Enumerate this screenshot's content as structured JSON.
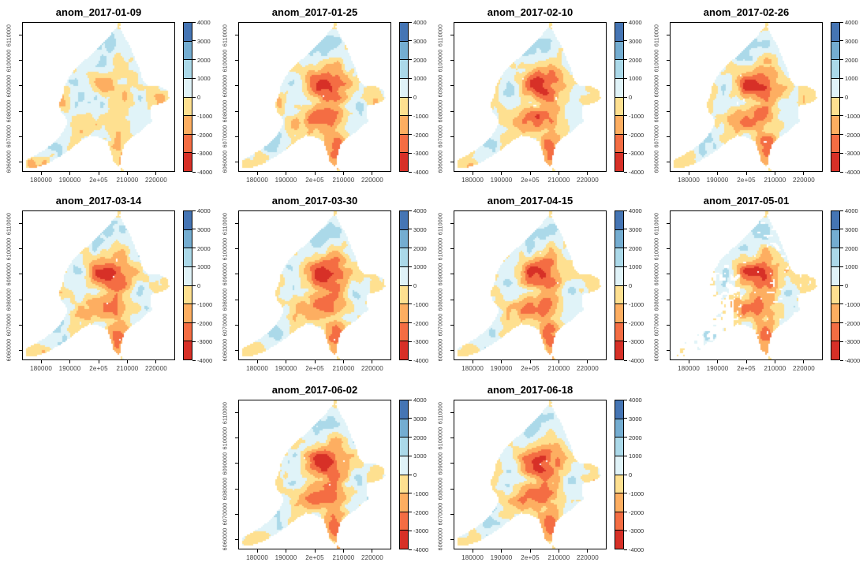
{
  "figure": {
    "background": "#ffffff",
    "axis_color": "#000000",
    "tick_label_color": "#3d3d3d",
    "title_color": "#000000",
    "x_tick_labels": [
      "180000",
      "190000",
      "2e+05",
      "210000",
      "220000"
    ],
    "y_tick_labels_top_to_bottom": [
      "6110000",
      "6100000",
      "6090000",
      "6080000",
      "6070000",
      "6060000"
    ],
    "legend_tick_labels_top_to_bottom": [
      "4000",
      "3000",
      "2000",
      "1000",
      "0",
      "-1000",
      "-2000",
      "-3000",
      "-4000"
    ],
    "palette_low_to_high": [
      "#d73027",
      "#f46d43",
      "#fdae61",
      "#fee090",
      "#e0f3f8",
      "#abd9e9",
      "#74add1",
      "#4575b4"
    ],
    "panels": [
      {
        "title": "anom_2017-01-09",
        "row": 0,
        "col": 0,
        "pattern": "mild"
      },
      {
        "title": "anom_2017-01-25",
        "row": 0,
        "col": 1,
        "pattern": "core"
      },
      {
        "title": "anom_2017-02-10",
        "row": 0,
        "col": 2,
        "pattern": "core"
      },
      {
        "title": "anom_2017-02-26",
        "row": 0,
        "col": 3,
        "pattern": "core"
      },
      {
        "title": "anom_2017-03-14",
        "row": 1,
        "col": 0,
        "pattern": "core"
      },
      {
        "title": "anom_2017-03-30",
        "row": 1,
        "col": 1,
        "pattern": "core"
      },
      {
        "title": "anom_2017-04-15",
        "row": 1,
        "col": 2,
        "pattern": "core"
      },
      {
        "title": "anom_2017-05-01",
        "row": 1,
        "col": 3,
        "pattern": "fragmented"
      },
      {
        "title": "anom_2017-06-02",
        "row": 2,
        "col": 1,
        "pattern": "core"
      },
      {
        "title": "anom_2017-06-18",
        "row": 2,
        "col": 2,
        "pattern": "core"
      }
    ]
  },
  "chart_data": {
    "type": "heatmap",
    "layout": "small multiples, 4 columns x 3 rows; last row has 2 panels in columns 2-3; each panel is a raster anomaly map with its own color-bar legend on the right",
    "panel_titles": [
      "anom_2017-01-09",
      "anom_2017-01-25",
      "anom_2017-02-10",
      "anom_2017-02-26",
      "anom_2017-03-14",
      "anom_2017-03-30",
      "anom_2017-04-15",
      "anom_2017-05-01",
      "anom_2017-06-02",
      "anom_2017-06-18"
    ],
    "x": {
      "ticks": [
        180000,
        190000,
        200000,
        210000,
        220000
      ],
      "tick_labels": [
        "180000",
        "190000",
        "2e+05",
        "210000",
        "220000"
      ],
      "range": [
        173400,
        226600
      ]
    },
    "y": {
      "ticks": [
        6060000,
        6070000,
        6080000,
        6090000,
        6100000,
        6110000
      ],
      "tick_labels": [
        "6060000",
        "6070000",
        "6080000",
        "6090000",
        "6100000",
        "6110000"
      ],
      "range": [
        6054000,
        6115500
      ]
    },
    "legend": {
      "breaks": [
        -4000,
        -3000,
        -2000,
        -1000,
        0,
        1000,
        2000,
        3000,
        4000
      ],
      "colors_low_to_high": [
        "#d73027",
        "#f46d43",
        "#fdae61",
        "#fee090",
        "#e0f3f8",
        "#abd9e9",
        "#74add1",
        "#4575b4"
      ],
      "position": "right of each panel, vertical"
    },
    "grid": false,
    "panels": [
      {
        "title": "anom_2017-01-09",
        "summary": "anomalies near zero: mix of 0..1000 (pale blue) and -1000..0 (pale yellow), scattered orange and blue clusters, small dark-blue patch in northwest"
      },
      {
        "title": "anom_2017-01-25",
        "summary": "strong negative core -2000..-4000 (red/orange) over centre and south; near-zero along north coast and southwest arm"
      },
      {
        "title": "anom_2017-02-10",
        "summary": "strong negative core in centre/south; light blue and yellow fringe in north and on southwest arm"
      },
      {
        "title": "anom_2017-02-26",
        "summary": "strong negative core -2000..-4000 in centre/south; weakly positive north"
      },
      {
        "title": "anom_2017-03-14",
        "summary": "intense red core slightly larger; southwest arm mostly near zero with orange specks"
      },
      {
        "title": "anom_2017-03-30",
        "summary": "strong negative centre/south core; pale blue north coast"
      },
      {
        "title": "anom_2017-04-15",
        "summary": "strong negative core; mixed near-zero fringe"
      },
      {
        "title": "anom_2017-05-01",
        "summary": "large areas of missing data (white) in southwest arm and west-centre; remaining core strongly negative"
      },
      {
        "title": "anom_2017-06-02",
        "summary": "strong negative core over centre and southern tail; blue-ish northeast"
      },
      {
        "title": "anom_2017-06-18",
        "summary": "strong negative core; light blue patches along east and in southwest arm"
      }
    ]
  }
}
